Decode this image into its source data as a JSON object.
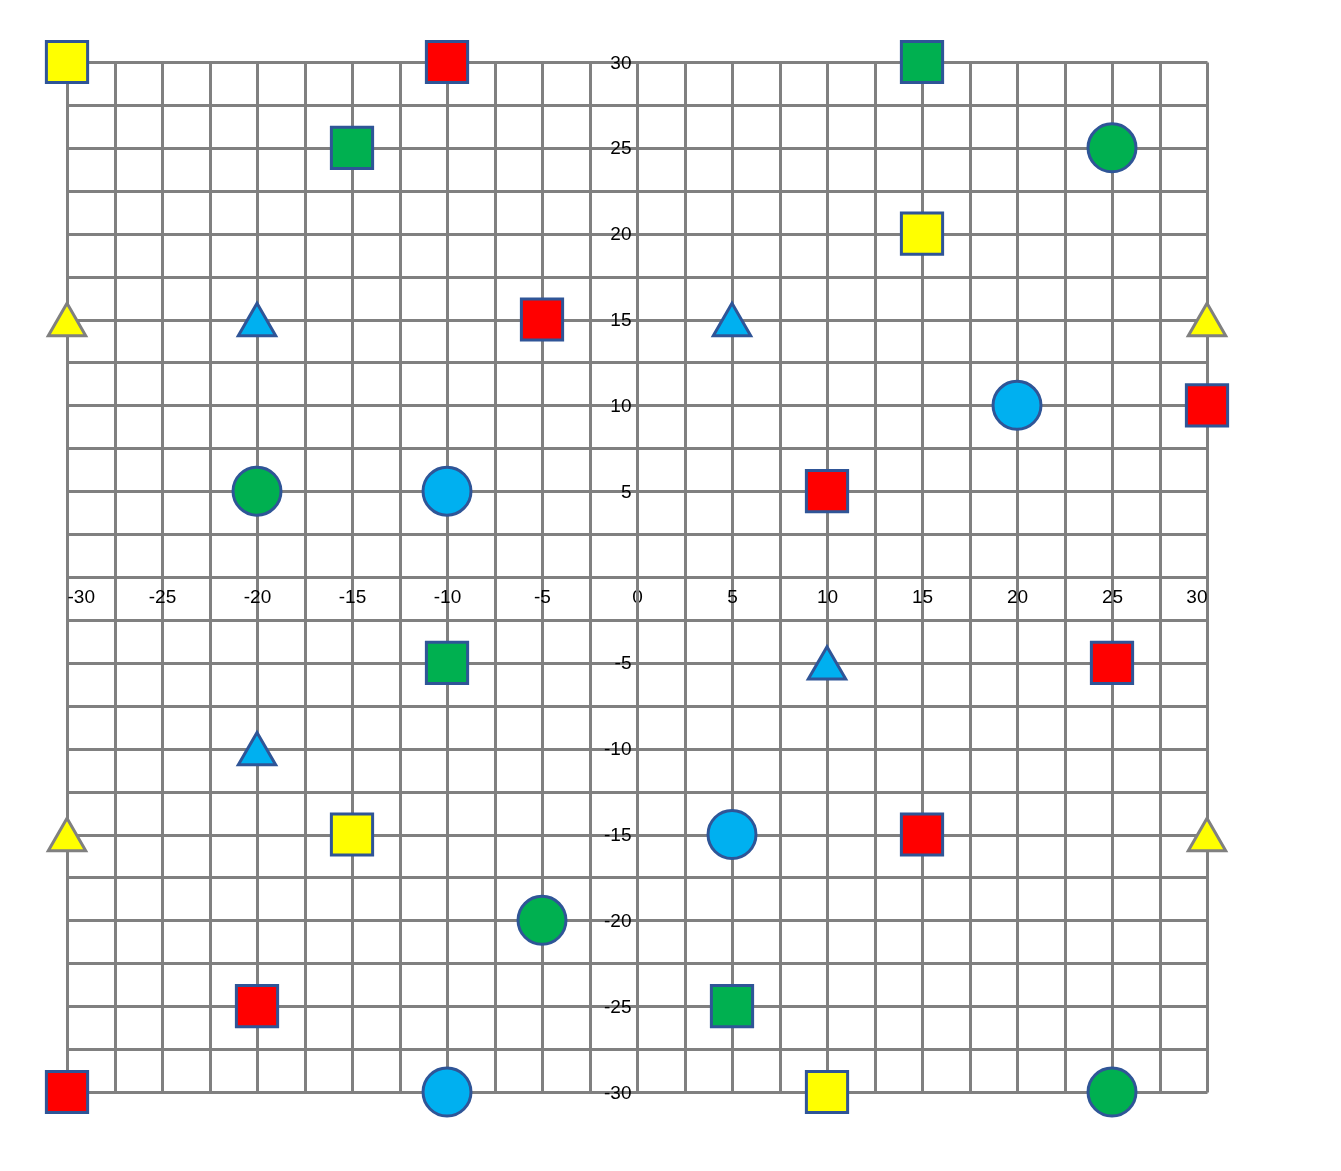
{
  "chart_data": {
    "type": "scatter",
    "grid": true,
    "xlim": [
      -30,
      30
    ],
    "ylim": [
      -30,
      30
    ],
    "xticks": [
      -30,
      {
        "value": -27.5,
        "label": null
      },
      -25,
      {
        "value": -22.5,
        "label": null
      },
      -20,
      {
        "value": -17.5,
        "label": null
      },
      -15,
      {
        "value": -12.5,
        "label": null
      },
      -10,
      {
        "value": -7.5,
        "label": null
      },
      -5,
      {
        "value": -2.5,
        "label": null
      },
      0,
      {
        "value": 2.5,
        "label": null
      },
      5,
      {
        "value": 7.5,
        "label": null
      },
      10,
      {
        "value": 12.5,
        "label": null
      },
      15,
      {
        "value": 17.5,
        "label": null
      },
      20,
      {
        "value": 22.5,
        "label": null
      },
      25,
      {
        "value": 27.5,
        "label": null
      },
      30
    ],
    "yticks": [
      -30,
      {
        "value": -27.5,
        "label": null
      },
      -25,
      {
        "value": -22.5,
        "label": null
      },
      -20,
      {
        "value": -17.5,
        "label": null
      },
      -15,
      {
        "value": -12.5,
        "label": null
      },
      -10,
      {
        "value": -7.5,
        "label": null
      },
      -5,
      {
        "value": -2.5,
        "label": null
      },
      {
        "value": 0,
        "label": null
      },
      {
        "value": 2.5,
        "label": null
      },
      5,
      {
        "value": 7.5,
        "label": null
      },
      10,
      {
        "value": 12.5,
        "label": null
      },
      15,
      {
        "value": 17.5,
        "label": null
      },
      20,
      {
        "value": 22.5,
        "label": null
      },
      25,
      {
        "value": 27.5,
        "label": null
      },
      30
    ],
    "series": [
      {
        "color": "#ffff00",
        "marker": "square",
        "x": [
          -30,
          15,
          -15,
          10
        ],
        "values": [
          30,
          20,
          -15,
          -30
        ]
      },
      {
        "color": "#ff0000",
        "marker": "square",
        "x": [
          -10,
          -5,
          10,
          30,
          25,
          15,
          -20,
          -30
        ],
        "values": [
          30,
          15,
          5,
          10,
          -5,
          -15,
          -25,
          -30
        ]
      },
      {
        "color": "#00b050",
        "marker": "square",
        "x": [
          -15,
          15,
          -10,
          5
        ],
        "values": [
          25,
          30,
          -5,
          -25
        ]
      },
      {
        "color": "#00b050",
        "marker": "circle",
        "x": [
          -20,
          25,
          -5,
          25
        ],
        "values": [
          5,
          25,
          -20,
          -30
        ]
      },
      {
        "color": "#00b0f0",
        "marker": "circle",
        "x": [
          -10,
          20,
          5,
          -10
        ],
        "values": [
          5,
          10,
          -15,
          -30
        ]
      },
      {
        "color": "#00b0f0",
        "marker": "triangle",
        "x": [
          -20,
          5,
          10,
          -20
        ],
        "values": [
          15,
          15,
          -5,
          -10
        ]
      },
      {
        "color": "#ffff00",
        "marker": "triangle",
        "x": [
          -30,
          30,
          -30,
          30
        ],
        "values": [
          15,
          15,
          -15,
          -15
        ]
      }
    ]
  }
}
